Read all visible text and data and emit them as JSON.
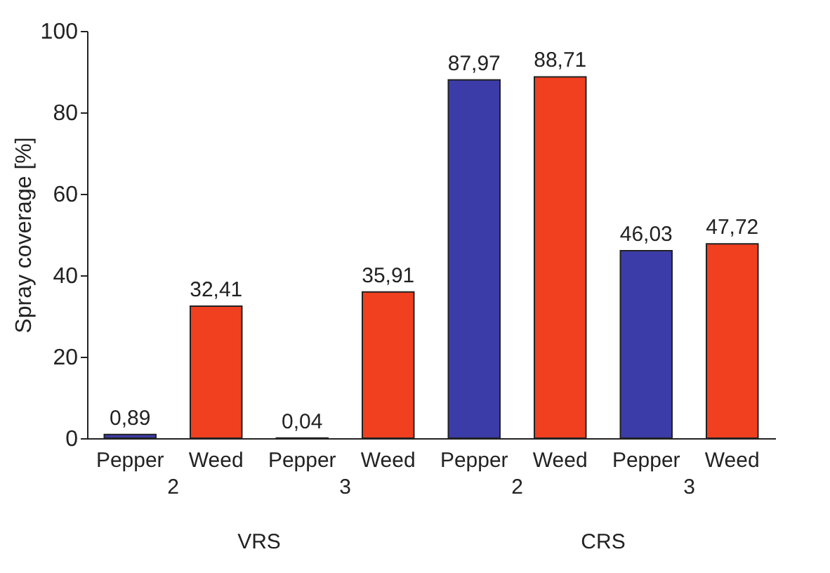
{
  "chart_data": {
    "type": "bar",
    "ylabel": "Spray coverage [%]",
    "categories": [
      "Pepper",
      "Weed",
      "Pepper",
      "Weed",
      "Pepper",
      "Weed",
      "Pepper",
      "Weed"
    ],
    "values": [
      0.89,
      32.41,
      0.04,
      35.91,
      87.97,
      88.71,
      46.03,
      47.72
    ],
    "value_labels": [
      "0,89",
      "32,41",
      "0,04",
      "35,91",
      "87,97",
      "88,71",
      "46,03",
      "47,72"
    ],
    "colors": [
      "#3c3ca8",
      "#f04020",
      "#3c3ca8",
      "#f04020",
      "#3c3ca8",
      "#f04020",
      "#3c3ca8",
      "#f04020"
    ],
    "ylim": [
      0,
      100
    ],
    "yticks": [
      0,
      20,
      40,
      60,
      80,
      100
    ],
    "grid": false,
    "annotations": [
      "2",
      "3",
      "2",
      "3",
      "VRS",
      "CRS"
    ]
  }
}
